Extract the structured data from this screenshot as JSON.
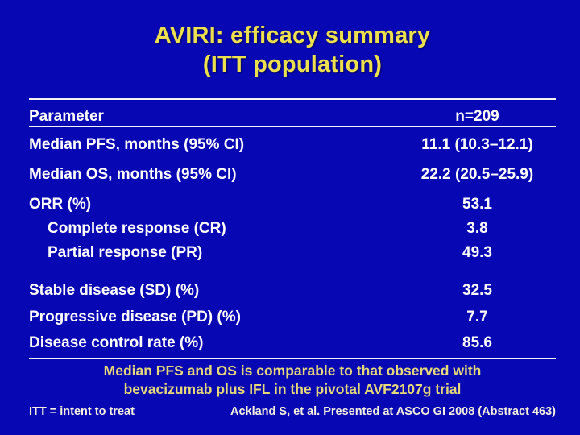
{
  "slide": {
    "title_line1": "AVIRI: efficacy summary",
    "title_line2": "(ITT population)",
    "table": {
      "header": {
        "parameter_label": "Parameter",
        "n_label": "n=209"
      },
      "rows": [
        {
          "label": "Median PFS, months (95% CI)",
          "value": "11.1 (10.3–12.1)"
        },
        {
          "label": "Median OS, months (95% CI)",
          "value": "22.2 (20.5–25.9)"
        },
        {
          "label": "ORR (%)",
          "value": "53.1"
        },
        {
          "label": "Complete response (CR)",
          "value": "3.8"
        },
        {
          "label": "Partial response (PR)",
          "value": "49.3"
        },
        {
          "label": "Stable disease (SD) (%)",
          "value": "32.5"
        },
        {
          "label": "Progressive disease (PD) (%)",
          "value": "7.7"
        },
        {
          "label": "Disease control rate (%)",
          "value": "85.6"
        }
      ]
    },
    "callout_line1": "Median PFS and OS is comparable to that observed with",
    "callout_line2": "bevacizumab plus IFL in the pivotal AVF2107g trial",
    "footnote_left": "ITT = intent to treat",
    "footnote_right": "Ackland S, et al. Presented at ASCO GI 2008 (Abstract 463)",
    "colors": {
      "background": "#0707b4",
      "title_text": "#ece04e",
      "body_text": "#ffffff",
      "callout_text": "#e5d878",
      "footnote_text": "#f3efdb",
      "rule": "#f2f2f2"
    }
  }
}
